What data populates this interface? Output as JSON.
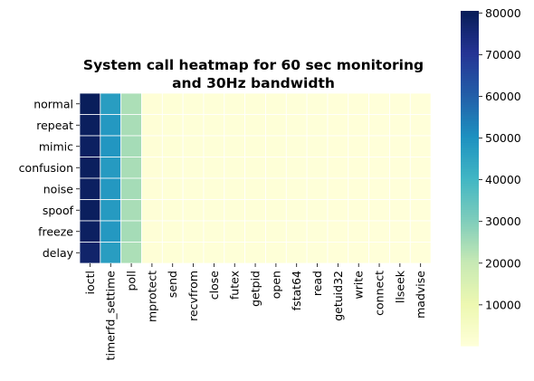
{
  "chart_data": {
    "type": "heatmap",
    "title_lines": [
      "System call heatmap for 60 sec monitoring",
      "and 30Hz bandwidth"
    ],
    "rows": [
      "normal",
      "repeat",
      "mimic",
      "confusion",
      "noise",
      "spoof",
      "freeze",
      "delay"
    ],
    "columns": [
      "ioctl",
      "timerfd_settime",
      "poll",
      "mprotect",
      "send",
      "recvfrom",
      "close",
      "futex",
      "getpid",
      "open",
      "fstat64",
      "read",
      "getuid32",
      "write",
      "connect",
      "llseek",
      "madvise"
    ],
    "values": [
      [
        80000,
        47000,
        24000,
        1000,
        900,
        800,
        700,
        700,
        600,
        600,
        500,
        500,
        400,
        400,
        300,
        300,
        200
      ],
      [
        79500,
        48500,
        24500,
        1000,
        900,
        800,
        700,
        700,
        600,
        600,
        500,
        500,
        400,
        400,
        300,
        300,
        200
      ],
      [
        79000,
        49000,
        25000,
        1000,
        900,
        800,
        700,
        700,
        600,
        600,
        500,
        500,
        400,
        400,
        300,
        300,
        200
      ],
      [
        79500,
        48000,
        24500,
        1000,
        900,
        800,
        700,
        700,
        600,
        600,
        500,
        500,
        400,
        400,
        300,
        300,
        200
      ],
      [
        79000,
        48500,
        25000,
        1000,
        900,
        800,
        700,
        700,
        600,
        600,
        500,
        500,
        400,
        400,
        300,
        300,
        200
      ],
      [
        79500,
        48000,
        24500,
        1000,
        900,
        800,
        700,
        700,
        600,
        600,
        500,
        500,
        400,
        400,
        300,
        300,
        200
      ],
      [
        79000,
        48500,
        25000,
        1000,
        900,
        800,
        700,
        700,
        600,
        600,
        500,
        500,
        400,
        400,
        300,
        300,
        200
      ],
      [
        77500,
        47000,
        24000,
        1000,
        900,
        800,
        700,
        700,
        600,
        600,
        500,
        500,
        400,
        400,
        300,
        300,
        200
      ]
    ],
    "colormap": "YlGnBu",
    "colorbar": {
      "range": [
        200,
        80500
      ],
      "ticks": [
        10000,
        20000,
        30000,
        40000,
        50000,
        60000,
        70000,
        80000
      ],
      "tick_labels": [
        "10000",
        "20000",
        "30000",
        "40000",
        "50000",
        "60000",
        "70000",
        "80000"
      ]
    },
    "grid_line_color": "#ffffff"
  }
}
